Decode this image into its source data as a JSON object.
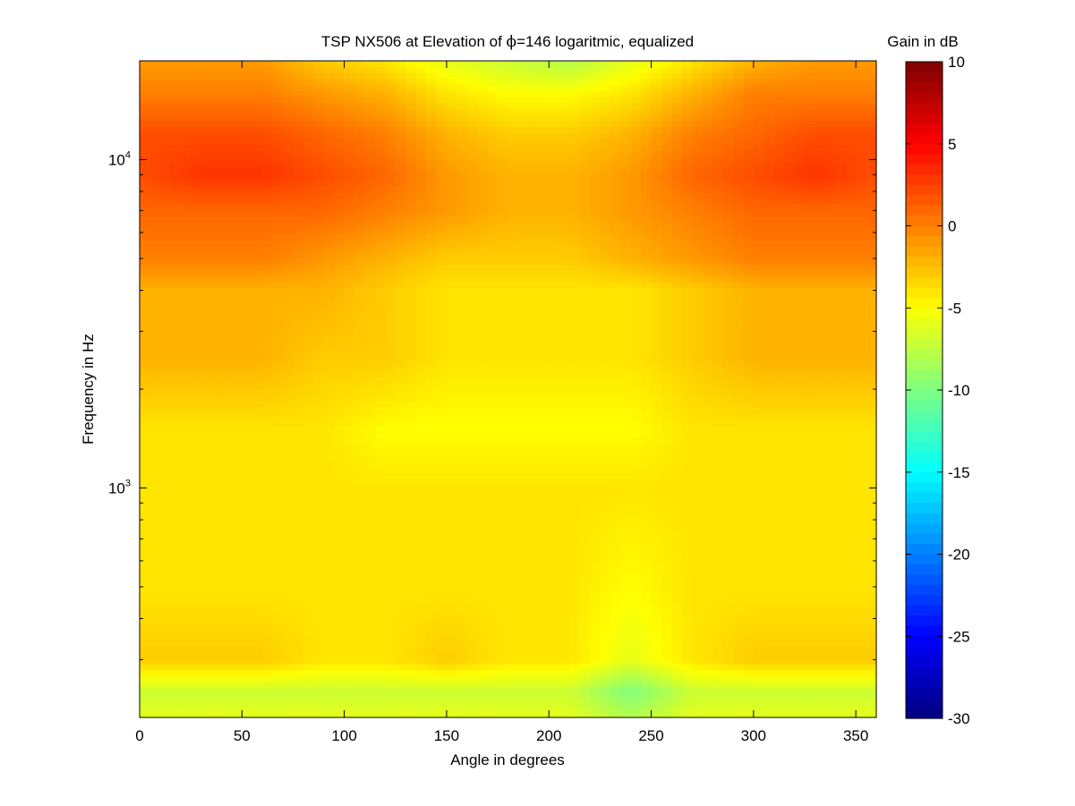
{
  "chart_data": {
    "type": "heatmap",
    "title": "TSP NX506 at Elevation of ϕ=146 logaritmic, equalized",
    "title_parts": {
      "before": "TSP NX506 at Elevation of ",
      "symbol": "ϕ",
      "after": "=146 logaritmic, equalized"
    },
    "xlabel": "Angle in degrees",
    "ylabel": "Frequency in Hz",
    "colorbar_label": "Gain in dB",
    "x_scale": "linear",
    "y_scale": "log",
    "xlim": [
      0,
      360
    ],
    "ylim": [
      200,
      20000
    ],
    "clim": [
      -30,
      10
    ],
    "colormap": "jet",
    "x_ticks": [
      0,
      50,
      100,
      150,
      200,
      250,
      300,
      350
    ],
    "y_ticks": [
      {
        "value": 1000,
        "base": "10",
        "exp": "3"
      },
      {
        "value": 10000,
        "base": "10",
        "exp": "4"
      }
    ],
    "colorbar_ticks": [
      10,
      5,
      0,
      -5,
      -10,
      -15,
      -20,
      -25,
      -30
    ],
    "angles": [
      0,
      30,
      60,
      90,
      120,
      150,
      180,
      210,
      240,
      270,
      300,
      330,
      360
    ],
    "gain_profiles": [
      {
        "frequency": 200,
        "gains_db": [
          -6,
          -6,
          -6,
          -6,
          -6,
          -6,
          -6,
          -6,
          -8,
          -6,
          -6,
          -6,
          -6
        ]
      },
      {
        "frequency": 240,
        "gains_db": [
          -7,
          -7,
          -7,
          -7,
          -7,
          -7,
          -7,
          -7,
          -10,
          -7,
          -7,
          -7,
          -7
        ]
      },
      {
        "frequency": 300,
        "gains_db": [
          -3,
          -3,
          -3,
          -4,
          -4,
          -3,
          -4,
          -4,
          -6,
          -4,
          -3,
          -3,
          -3
        ]
      },
      {
        "frequency": 500,
        "gains_db": [
          -4,
          -4,
          -4,
          -4,
          -4,
          -4,
          -4,
          -4,
          -5,
          -4,
          -4,
          -4,
          -4
        ]
      },
      {
        "frequency": 1000,
        "gains_db": [
          -4,
          -4,
          -4,
          -4,
          -4,
          -4,
          -4,
          -4,
          -4,
          -4,
          -4,
          -4,
          -4
        ]
      },
      {
        "frequency": 1500,
        "gains_db": [
          -4,
          -4,
          -4,
          -4,
          -5,
          -5,
          -5,
          -5,
          -5,
          -4,
          -4,
          -4,
          -4
        ]
      },
      {
        "frequency": 2500,
        "gains_db": [
          -2,
          -2,
          -2,
          -3,
          -3,
          -4,
          -4,
          -4,
          -4,
          -3,
          -2,
          -2,
          -2
        ]
      },
      {
        "frequency": 4000,
        "gains_db": [
          -2,
          -2,
          -2,
          -2,
          -3,
          -4,
          -4,
          -4,
          -4,
          -3,
          -2,
          -2,
          -2
        ]
      },
      {
        "frequency": 5000,
        "gains_db": [
          0,
          0,
          0,
          -1,
          -2,
          -3,
          -3,
          -3,
          -2,
          -1,
          0,
          0,
          0
        ]
      },
      {
        "frequency": 7000,
        "gains_db": [
          1,
          1,
          1,
          1,
          0,
          -1,
          -2,
          -2,
          -1,
          0,
          1,
          1,
          1
        ]
      },
      {
        "frequency": 9000,
        "gains_db": [
          2,
          3,
          3,
          2,
          1,
          -1,
          -2,
          -2,
          -1,
          1,
          2,
          3,
          2
        ]
      },
      {
        "frequency": 12000,
        "gains_db": [
          2,
          2,
          2,
          1,
          0,
          -2,
          -3,
          -3,
          -2,
          0,
          1,
          2,
          2
        ]
      },
      {
        "frequency": 16000,
        "gains_db": [
          0,
          0,
          0,
          -1,
          -2,
          -4,
          -5,
          -5,
          -4,
          -2,
          0,
          0,
          0
        ]
      },
      {
        "frequency": 20000,
        "gains_db": [
          -1,
          -1,
          -1,
          -3,
          -4,
          -6,
          -7,
          -8,
          -6,
          -4,
          -2,
          -1,
          -1
        ]
      }
    ],
    "grid": false
  }
}
